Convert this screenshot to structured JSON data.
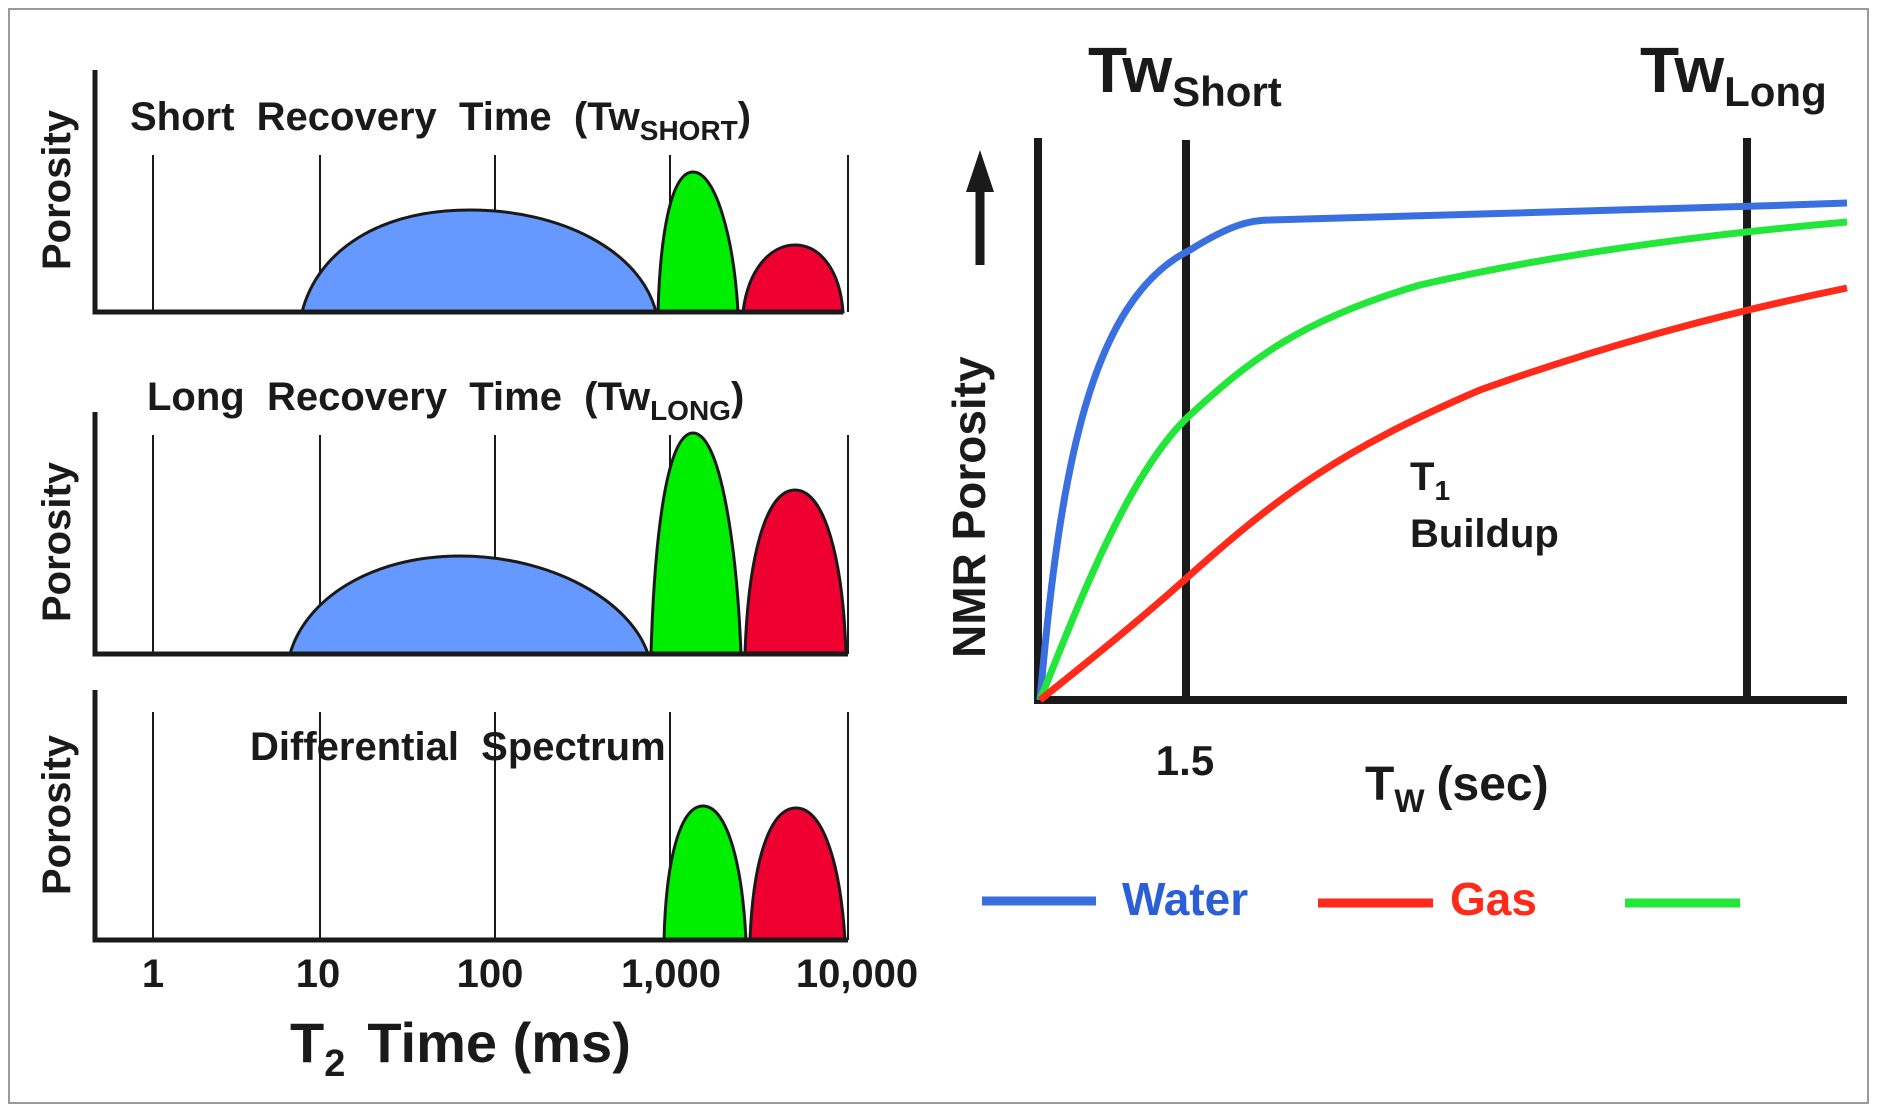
{
  "left_panels": {
    "axis_label": "Porosity",
    "tick_labels": [
      "1",
      "10",
      "100",
      "1,000",
      "10,000"
    ],
    "xlabel_main": "T",
    "xlabel_sub": "2",
    "xlabel_rest": "Time (ms)",
    "panels": [
      {
        "title_main": "Short  Recovery  Time  (Tw",
        "title_sub": "SHORT",
        "title_end": ")"
      },
      {
        "title_main": "Long  Recovery  Time  (Tw",
        "title_sub": "LONG",
        "title_end": ")"
      },
      {
        "title_main": "Differential  Spectrum",
        "title_sub": "",
        "title_end": ""
      }
    ]
  },
  "right_panel": {
    "ylabel": "NMR Porosity",
    "tw_short_main": "Tw",
    "tw_short_sub": "Short",
    "tw_long_main": "Tw",
    "tw_long_sub": "Long",
    "tick_label": "1.5",
    "xlabel_main": "T",
    "xlabel_sub": "W",
    "xlabel_rest": "(sec)",
    "annotation_main": "T",
    "annotation_sub": "1",
    "annotation_line2": "Buildup"
  },
  "legend": [
    {
      "label": "Water",
      "color": "#3a6fe0"
    },
    {
      "label": "Gas",
      "color": "#ff2a1a"
    },
    {
      "label": "",
      "color": "#22e63a"
    }
  ],
  "colors": {
    "water_fill": "#6699ff",
    "oil_fill": "#00ee00",
    "gas_fill": "#ee0030",
    "water_line": "#3a6fe0",
    "oil_line": "#22e63a",
    "gas_line": "#ff2a1a"
  }
}
